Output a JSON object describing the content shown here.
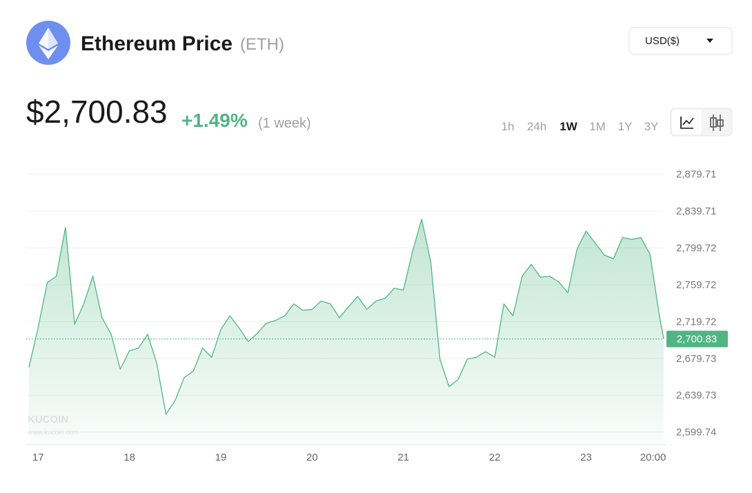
{
  "header": {
    "title": "Ethereum Price",
    "symbol": "(ETH)",
    "currency": "USD($)"
  },
  "price": {
    "value": "$2,700.83",
    "change": "+1.49%",
    "period": "(1 week)"
  },
  "timeframes": [
    "1h",
    "24h",
    "1W",
    "1M",
    "1Y",
    "3Y"
  ],
  "watermark": {
    "brand": "KUCOIN",
    "url": "www.kucoin.com"
  },
  "chart_data": {
    "type": "line",
    "color": "#4fb583",
    "area": true,
    "grid": true,
    "x": [
      16.9,
      17.0,
      17.1,
      17.2,
      17.3,
      17.4,
      17.5,
      17.6,
      17.7,
      17.8,
      17.9,
      18.0,
      18.1,
      18.2,
      18.3,
      18.4,
      18.5,
      18.6,
      18.7,
      18.8,
      18.9,
      19.0,
      19.1,
      19.2,
      19.3,
      19.4,
      19.5,
      19.6,
      19.7,
      19.8,
      19.9,
      20.0,
      20.1,
      20.2,
      20.3,
      20.4,
      20.5,
      20.6,
      20.7,
      20.8,
      20.9,
      21.0,
      21.1,
      21.2,
      21.3,
      21.4,
      21.5,
      21.6,
      21.7,
      21.8,
      21.9,
      22.0,
      22.1,
      22.2,
      22.3,
      22.4,
      22.5,
      22.6,
      22.7,
      22.8,
      22.9,
      23.0,
      23.1,
      23.2,
      23.3,
      23.4,
      23.5,
      23.6,
      23.7,
      23.8,
      23.85
    ],
    "values": [
      2670,
      2713,
      2762,
      2769,
      2822,
      2717,
      2739,
      2769,
      2724,
      2706,
      2668,
      2688,
      2691,
      2706,
      2674,
      2619,
      2634,
      2659,
      2666,
      2691,
      2681,
      2711,
      2726,
      2713,
      2698,
      2707,
      2718,
      2721,
      2726,
      2739,
      2732,
      2733,
      2742,
      2739,
      2724,
      2736,
      2747,
      2733,
      2742,
      2745,
      2756,
      2754,
      2796,
      2831,
      2784,
      2679,
      2649,
      2657,
      2679,
      2681,
      2687,
      2681,
      2739,
      2726,
      2769,
      2782,
      2768,
      2769,
      2763,
      2751,
      2798,
      2818,
      2805,
      2792,
      2788,
      2811,
      2809,
      2811,
      2793,
      2728,
      2700.83
    ],
    "xlim": [
      16.87,
      23.85
    ],
    "xticks": [
      17,
      18,
      19,
      20,
      21,
      22,
      23,
      {
        "value": 23.83,
        "label": "20:00"
      }
    ],
    "ylim": [
      2586,
      2893
    ],
    "yticks": [
      {
        "value": 2599.74,
        "label": "2,599.74"
      },
      {
        "value": 2639.73,
        "label": "2,639.73"
      },
      {
        "value": 2679.73,
        "label": "2,679.73"
      },
      {
        "value": 2719.72,
        "label": "2,719.72"
      },
      {
        "value": 2759.72,
        "label": "2,759.72"
      },
      {
        "value": 2799.72,
        "label": "2,799.72"
      },
      {
        "value": 2839.71,
        "label": "2,839.71"
      },
      {
        "value": 2879.71,
        "label": "2,879.71"
      }
    ],
    "last_value": {
      "value": 2700.83,
      "label": "2,700.83"
    }
  }
}
